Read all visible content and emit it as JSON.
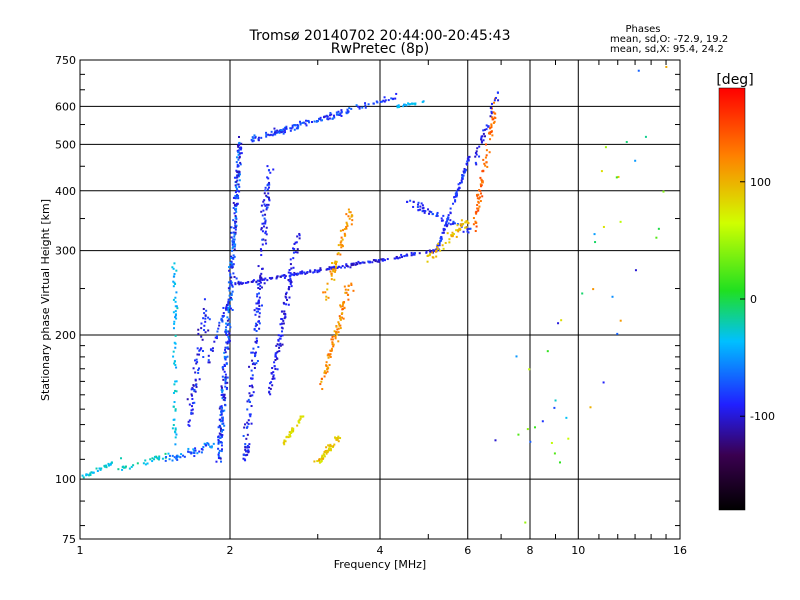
{
  "chart_data": {
    "type": "scatter",
    "title": "Tromsø 20140702 20:44:00-20:45:43",
    "subtitle": "RwPretec (8p)",
    "xlabel": "Frequency [MHz]",
    "ylabel": "Stationary phase Virtual Height [km]",
    "x_scale": "log",
    "y_scale": "log",
    "xlim": [
      1,
      16
    ],
    "ylim": [
      75,
      750
    ],
    "x_ticks": [
      1,
      2,
      4,
      6,
      8,
      10,
      16
    ],
    "y_ticks": [
      75,
      100,
      200,
      300,
      400,
      500,
      600,
      750
    ],
    "grid": true,
    "phase_stats": {
      "heading": "Phases",
      "line1": "mean, sd,O: -72.9, 19.2",
      "line2": "mean, sd,X:  95.4, 24.2"
    },
    "colorbar": {
      "label": "[deg]",
      "range": [
        -180,
        180
      ],
      "ticks": [
        100,
        0,
        -100
      ]
    },
    "series": [
      {
        "clusters": [
          {
            "fx": [
              1.0,
              1.22
            ],
            "fh": [
              100,
              111
            ],
            "w": [
              0.01,
              0.015
            ],
            "n": 35,
            "ph": [
              -40,
              -20
            ]
          },
          {
            "fx": [
              1.2,
              1.5
            ],
            "fh": [
              105,
              112
            ],
            "w": [
              0.015,
              0.02
            ],
            "n": 30,
            "ph": [
              -40,
              -10
            ]
          },
          {
            "fx": [
              1.5,
              1.85
            ],
            "fh": [
              110,
              118
            ],
            "w": [
              0.02,
              0.03
            ],
            "n": 50,
            "ph": [
              -90,
              -40
            ]
          },
          {
            "fx": [
              1.55,
              1.55
            ],
            "fh": [
              120,
              285
            ],
            "w": [
              0.015,
              0.05
            ],
            "n": 60,
            "ph": [
              -50,
              -20
            ]
          },
          {
            "fx": [
              1.65,
              1.8
            ],
            "fh": [
              130,
              230
            ],
            "w": [
              0.025,
              0.08
            ],
            "n": 70,
            "ph": [
              -110,
              -70
            ]
          },
          {
            "fx": [
              1.9,
              2.1
            ],
            "fh": [
              110,
              520
            ],
            "w": [
              0.02,
              0.04
            ],
            "n": 320,
            "ph": [
              -110,
              -50
            ]
          },
          {
            "fx": [
              2.15,
              2.4
            ],
            "fh": [
              110,
              450
            ],
            "w": [
              0.025,
              0.05
            ],
            "n": 180,
            "ph": [
              -110,
              -70
            ]
          },
          {
            "fx": [
              2.4,
              2.75
            ],
            "fh": [
              150,
              330
            ],
            "w": [
              0.02,
              0.04
            ],
            "n": 110,
            "ph": [
              -110,
              -80
            ]
          },
          {
            "fx": [
              2.55,
              2.8
            ],
            "fh": [
              118,
              135
            ],
            "w": [
              0.01,
              0.015
            ],
            "n": 35,
            "ph": [
              70,
              100
            ]
          },
          {
            "fx": [
              1.8,
              2.05
            ],
            "fh": [
              175,
              260
            ],
            "w": [
              0.01,
              0.03
            ],
            "n": 40,
            "ph": [
              -110,
              -60
            ]
          },
          {
            "fx": [
              2.05,
              5.2
            ],
            "fh": [
              255,
              300
            ],
            "w": [
              0.01,
              0.012
            ],
            "n": 180,
            "ph": [
              -110,
              -80
            ]
          },
          {
            "fx": [
              5.2,
              6.05
            ],
            "fh": [
              300,
              470
            ],
            "w": [
              0.008,
              0.02
            ],
            "n": 90,
            "ph": [
              -100,
              -70
            ]
          },
          {
            "fx": [
              2.2,
              4.3
            ],
            "fh": [
              510,
              630
            ],
            "w": [
              0.02,
              0.025
            ],
            "n": 150,
            "ph": [
              -100,
              -60
            ]
          },
          {
            "fx": [
              4.3,
              5.0
            ],
            "fh": [
              600,
              615
            ],
            "w": [
              0.01,
              0.01
            ],
            "n": 20,
            "ph": [
              -50,
              -30
            ]
          },
          {
            "fx": [
              4.5,
              6.1
            ],
            "fh": [
              380,
              330
            ],
            "w": [
              0.015,
              0.04
            ],
            "n": 60,
            "ph": [
              -100,
              -70
            ]
          },
          {
            "fx": [
              3.05,
              3.5
            ],
            "fh": [
              155,
              260
            ],
            "w": [
              0.02,
              0.05
            ],
            "n": 90,
            "ph": [
              100,
              140
            ]
          },
          {
            "fx": [
              3.0,
              3.3
            ],
            "fh": [
              108,
              122
            ],
            "w": [
              0.02,
              0.015
            ],
            "n": 55,
            "ph": [
              70,
              110
            ]
          },
          {
            "fx": [
              3.1,
              3.5
            ],
            "fh": [
              240,
              360
            ],
            "w": [
              0.02,
              0.06
            ],
            "n": 60,
            "ph": [
              90,
              130
            ]
          },
          {
            "fx": [
              5.0,
              6.1
            ],
            "fh": [
              290,
              350
            ],
            "w": [
              0.02,
              0.04
            ],
            "n": 50,
            "ph": [
              80,
              110
            ]
          },
          {
            "fx": [
              6.2,
              6.8
            ],
            "fh": [
              340,
              600
            ],
            "w": [
              0.015,
              0.06
            ],
            "n": 80,
            "ph": [
              120,
              150
            ]
          },
          {
            "fx": [
              6.2,
              6.9
            ],
            "fh": [
              460,
              640
            ],
            "w": [
              0.02,
              0.04
            ],
            "n": 35,
            "ph": [
              -110,
              -80
            ]
          },
          {
            "fx": [
              7.0,
              16.0
            ],
            "fh": [
              80,
              650
            ],
            "w": [
              0.4,
              0.4
            ],
            "n": 45,
            "ph": [
              -110,
              120
            ]
          }
        ]
      }
    ]
  }
}
